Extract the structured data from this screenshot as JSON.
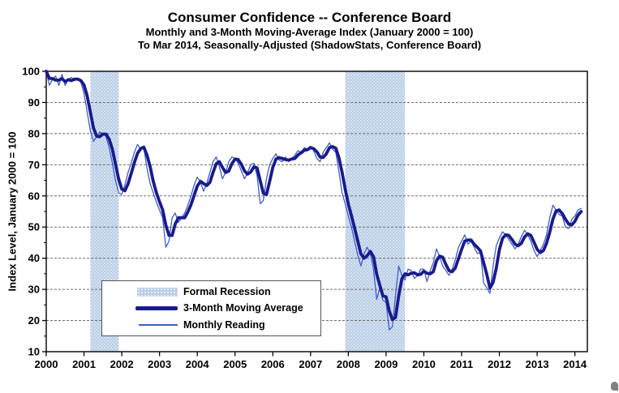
{
  "header": {
    "title": "Consumer Confidence -- Conference Board",
    "subtitle1": "Monthly and 3-Month Moving-Average Index (January 2000 = 100)",
    "subtitle2": "To Mar 2014, Seasonally-Adjusted (ShadowStats, Conference Board)"
  },
  "y_axis_title": "Index Level, January 2000 = 100",
  "legend": {
    "items": [
      {
        "label": "Formal Recession",
        "swatch": "recession-band-swatch"
      },
      {
        "label": "3-Month Moving Average",
        "swatch": "thick-line-swatch"
      },
      {
        "label": "Monthly Reading",
        "swatch": "thin-line-swatch"
      }
    ]
  },
  "chart_data": {
    "type": "line",
    "title": "Consumer Confidence -- Conference Board",
    "xlabel": "",
    "ylabel": "Index Level, January 2000 = 100",
    "ylim": [
      10,
      100
    ],
    "y_ticks": [
      10,
      20,
      30,
      40,
      50,
      60,
      70,
      80,
      90,
      100
    ],
    "x_ticks": [
      2000,
      2001,
      2002,
      2003,
      2004,
      2005,
      2006,
      2007,
      2008,
      2009,
      2010,
      2011,
      2012,
      2013,
      2014
    ],
    "x_end_year": 2014.33,
    "grid": "horizontal-dashed",
    "legend_position": "lower-left-inside",
    "recession_bands": [
      {
        "label": "2001 recession",
        "start": 2001.17,
        "end": 2001.92
      },
      {
        "label": "2007-2009 recession",
        "start": 2007.92,
        "end": 2009.5
      }
    ],
    "series": [
      {
        "name": "Monthly Reading",
        "start": "2000-01",
        "end": "2014-03",
        "frequency": "monthly",
        "values": [
          100,
          95.5,
          97.5,
          98.5,
          95.5,
          99,
          95.5,
          97.5,
          98,
          97,
          97.5,
          96.5,
          93,
          87,
          81,
          77.5,
          79,
          80.5,
          80,
          79,
          75.5,
          70.5,
          65,
          61,
          60.5,
          63.5,
          67.5,
          70.5,
          74,
          76.5,
          75,
          75.5,
          69,
          64,
          61,
          58,
          55.5,
          53,
          43.5,
          45.5,
          53,
          54.5,
          51.5,
          53,
          54.5,
          57,
          60,
          63.5,
          66,
          64.5,
          61.5,
          64,
          67.5,
          71,
          72.5,
          69.5,
          65.5,
          67.5,
          71,
          72.5,
          72,
          70.5,
          68,
          65.5,
          67.5,
          70,
          70.5,
          66.5,
          57.5,
          58.5,
          65.5,
          70,
          72,
          73.5,
          71.5,
          71,
          72.5,
          71,
          72,
          73,
          74.5,
          74,
          75.5,
          75,
          76,
          74.5,
          72,
          71,
          74,
          75.5,
          77,
          75,
          74,
          68,
          61,
          57.5,
          53.5,
          50,
          45.5,
          41,
          37.5,
          41.5,
          43.5,
          41.5,
          36.5,
          26.8,
          30.5,
          26.5,
          25.8,
          17,
          18,
          28,
          37.5,
          34.5,
          33,
          36.5,
          36,
          33.5,
          34.5,
          36.5,
          36.5,
          32.5,
          36,
          38.5,
          43,
          40.5,
          37.5,
          36,
          34.5,
          36.5,
          39.5,
          43.5,
          45.5,
          47.5,
          44.5,
          45.5,
          43.5,
          41.5,
          42,
          32,
          30.5,
          28.7,
          37.5,
          44,
          46.5,
          48.5,
          47.5,
          46,
          44.5,
          43,
          44.5,
          47,
          49,
          47.5,
          45.5,
          42.5,
          40.5,
          42.5,
          44.5,
          47.5,
          53,
          57,
          55.5,
          54,
          53.5,
          50,
          49.5,
          52.5,
          53.5,
          55.5,
          56
        ]
      },
      {
        "name": "3-Month Moving Average",
        "derived_from": "Monthly Reading",
        "window": 3
      }
    ],
    "colors": {
      "monthly_line": "#3B5FCD",
      "moving_average_line": "#1A1A8C",
      "recession_band": "#BCCFE7",
      "recession_band_dot": "#E9F2FB",
      "gridline": "#6e6e6e",
      "axis": "#000000"
    }
  }
}
